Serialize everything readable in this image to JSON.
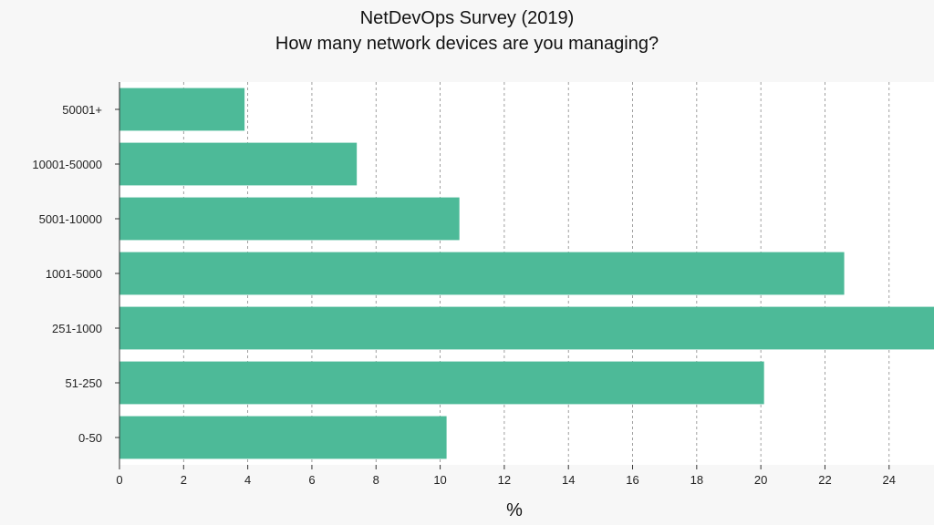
{
  "chart_data": {
    "type": "bar",
    "orientation": "horizontal",
    "title": "NetDevOps Survey (2019)",
    "subtitle": "How many network devices are you managing?",
    "xlabel": "%",
    "ylabel": "",
    "categories": [
      "50001+",
      "10001-50000",
      "5001-10000",
      "1001-5000",
      "251-1000",
      "51-250",
      "0-50"
    ],
    "values": [
      3.9,
      7.4,
      10.6,
      22.6,
      25.4,
      20.1,
      10.2
    ],
    "xlim": [
      0,
      25.4
    ],
    "xticks": [
      0,
      2,
      4,
      6,
      8,
      10,
      12,
      14,
      16,
      18,
      20,
      22,
      24
    ],
    "grid": "vertical dashed",
    "bar_color": "#4dba98"
  }
}
